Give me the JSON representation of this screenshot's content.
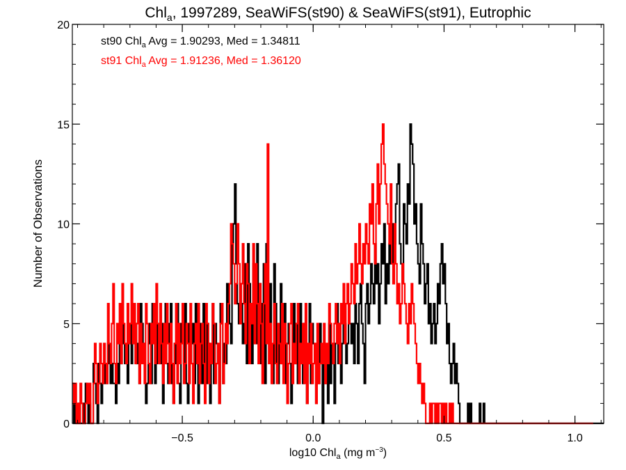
{
  "chart_data": {
    "type": "histogram-step",
    "title": {
      "prefix": "Chl",
      "sub": "a",
      "suffix": ", 1997289, SeaWiFS(st90) & SeaWiFS(st91), Eutrophic"
    },
    "xlabel": {
      "prefix": "log10 Chl",
      "sub": "a",
      "mid": " (mg m",
      "sup": "−3",
      "suffix": ")"
    },
    "ylabel": "Number of Observations",
    "xlim": [
      -0.92,
      1.11
    ],
    "ylim": [
      0,
      20
    ],
    "x_ticks": [
      -0.5,
      0.0,
      0.5,
      1.0
    ],
    "x_tick_labels": [
      "−0.5",
      "0.0",
      "0.5",
      "1.0"
    ],
    "y_ticks": [
      0,
      5,
      10,
      15,
      20
    ],
    "y_tick_labels": [
      "0",
      "5",
      "10",
      "15",
      "20"
    ],
    "bin_start": -0.92,
    "bin_width": 0.005,
    "legend": [
      {
        "prefix": "st90 Chl",
        "sub": "a",
        "suffix": " Avg = 1.90293, Med = 1.34811",
        "color": "#000000"
      },
      {
        "prefix": "st91 Chl",
        "sub": "a",
        "suffix": " Avg = 1.91236, Med = 1.36120",
        "color": "#ff0000"
      }
    ],
    "series": [
      {
        "color": "#000000",
        "values": [
          2,
          0,
          1,
          0,
          0,
          1,
          0,
          0,
          1,
          0,
          2,
          1,
          0,
          1,
          0,
          0,
          3,
          2,
          1,
          0,
          3,
          2,
          1,
          2,
          3,
          2,
          2,
          4,
          3,
          2,
          3,
          2,
          2,
          1,
          3,
          2,
          4,
          3,
          5,
          4,
          3,
          3,
          2,
          4,
          5,
          3,
          4,
          6,
          5,
          3,
          4,
          2,
          6,
          5,
          4,
          3,
          1,
          2,
          4,
          5,
          2,
          6,
          5,
          2,
          3,
          5,
          4,
          3,
          5,
          1,
          4,
          6,
          3,
          2,
          5,
          6,
          2,
          1,
          4,
          3,
          6,
          2,
          1,
          5,
          4,
          3,
          6,
          2,
          1,
          5,
          3,
          4,
          5,
          2,
          6,
          3,
          1,
          4,
          5,
          2,
          6,
          3,
          2,
          5,
          4,
          1,
          3,
          6,
          2,
          5,
          4,
          3,
          1,
          6,
          5,
          2,
          4,
          3,
          7,
          6,
          5,
          4,
          9,
          10,
          12,
          8,
          6,
          5,
          7,
          6,
          4,
          5,
          8,
          3,
          9,
          7,
          5,
          3,
          8,
          6,
          4,
          9,
          5,
          7,
          3,
          6,
          8,
          2,
          9,
          5,
          4,
          7,
          3,
          2,
          8,
          6,
          3,
          2,
          4,
          7,
          3,
          5,
          6,
          2,
          4,
          5,
          3,
          1,
          4,
          6,
          3,
          5,
          2,
          4,
          6,
          3,
          2,
          5,
          4,
          1,
          3,
          6,
          2,
          5,
          4,
          3,
          1,
          4,
          2,
          5,
          3,
          0,
          4,
          2,
          3,
          1,
          5,
          2,
          4,
          3,
          1,
          4,
          6,
          3,
          5,
          2,
          4,
          6,
          5,
          3,
          4,
          6,
          5,
          4,
          5,
          3,
          6,
          5,
          3,
          6,
          7,
          5,
          4,
          2,
          6,
          7,
          5,
          6,
          8,
          7,
          6,
          9,
          7,
          8,
          5,
          7,
          9,
          8,
          10,
          6,
          8,
          7,
          9,
          8,
          10,
          7,
          9,
          11,
          12,
          13,
          9,
          8,
          7,
          11,
          10,
          9,
          12,
          11,
          15,
          14,
          13,
          10,
          11,
          9,
          8,
          7,
          11,
          9,
          8,
          6,
          7,
          8,
          5,
          6,
          4,
          5,
          6,
          4,
          5,
          7,
          6,
          8,
          9,
          7,
          8,
          6,
          4,
          5,
          3,
          2,
          3,
          4,
          2,
          3,
          2,
          1,
          0,
          0,
          0,
          0,
          0,
          0,
          1,
          0,
          1,
          0,
          0,
          0,
          0,
          0,
          0,
          1,
          0,
          0,
          1,
          0,
          0,
          0,
          0,
          0,
          0,
          0,
          0,
          0,
          0,
          0,
          0,
          0,
          0,
          0,
          0,
          0,
          0,
          0,
          0,
          0,
          0,
          0,
          0,
          0,
          0,
          0,
          0,
          0,
          0,
          0,
          0,
          0,
          0,
          0,
          0,
          0,
          0,
          0,
          0,
          0,
          0,
          0,
          0,
          0,
          0,
          0,
          0,
          0,
          0,
          0,
          0,
          0,
          0,
          0,
          0,
          0,
          0,
          0,
          0,
          0,
          0,
          0,
          0,
          0,
          0,
          0,
          0,
          0,
          0,
          0,
          0,
          0,
          0,
          0,
          0,
          0,
          0,
          0,
          0,
          0,
          0,
          0,
          0,
          0,
          0,
          0,
          0,
          0,
          0,
          0,
          0,
          0,
          0,
          0,
          0,
          0,
          0,
          0,
          0,
          0,
          0
        ]
      },
      {
        "color": "#ff0000",
        "values": [
          2,
          1,
          2,
          0,
          1,
          0,
          2,
          1,
          0,
          0,
          1,
          2,
          1,
          2,
          0,
          0,
          2,
          4,
          3,
          1,
          2,
          4,
          3,
          2,
          4,
          3,
          2,
          6,
          4,
          3,
          5,
          7,
          3,
          2,
          5,
          4,
          6,
          3,
          7,
          5,
          4,
          3,
          6,
          4,
          5,
          7,
          4,
          6,
          3,
          5,
          6,
          2,
          5,
          3,
          4,
          2,
          6,
          5,
          3,
          2,
          5,
          4,
          6,
          3,
          7,
          5,
          3,
          6,
          4,
          2,
          5,
          3,
          6,
          4,
          2,
          5,
          3,
          1,
          4,
          6,
          2,
          5,
          3,
          4,
          6,
          2,
          3,
          5,
          4,
          2,
          6,
          3,
          1,
          4,
          5,
          3,
          6,
          2,
          4,
          5,
          3,
          1,
          6,
          5,
          2,
          4,
          3,
          6,
          5,
          2,
          3,
          4,
          1,
          5,
          6,
          2,
          3,
          5,
          4,
          6,
          7,
          10,
          9,
          8,
          6,
          7,
          10,
          8,
          5,
          7,
          9,
          6,
          4,
          8,
          7,
          3,
          6,
          5,
          9,
          4,
          8,
          6,
          3,
          7,
          5,
          2,
          6,
          8,
          4,
          14,
          3,
          5,
          2,
          4,
          6,
          3,
          2,
          5,
          4,
          3,
          6,
          2,
          5,
          4,
          1,
          3,
          5,
          6,
          2,
          4,
          3,
          5,
          6,
          2,
          4,
          3,
          5,
          2,
          6,
          1,
          4,
          3,
          5,
          2,
          3,
          4,
          1,
          5,
          2,
          3,
          4,
          3,
          5,
          2,
          4,
          3,
          6,
          5,
          4,
          3,
          5,
          6,
          4,
          5,
          3,
          6,
          5,
          7,
          4,
          6,
          7,
          5,
          6,
          8,
          7,
          6,
          9,
          7,
          8,
          10,
          8,
          7,
          9,
          8,
          10,
          9,
          8,
          11,
          10,
          12,
          9,
          8,
          11,
          13,
          10,
          12,
          14,
          15,
          13,
          12,
          11,
          10,
          9,
          12,
          8,
          7,
          10,
          8,
          6,
          7,
          5,
          6,
          8,
          7,
          6,
          5,
          4,
          6,
          5,
          7,
          6,
          5,
          4,
          3,
          2,
          3,
          2,
          1,
          2,
          1,
          0,
          0,
          0,
          1,
          0,
          1,
          1,
          0,
          1,
          0,
          1,
          1,
          0,
          1,
          0,
          1,
          0,
          0,
          1,
          0,
          1,
          0,
          0,
          0,
          0,
          0,
          0,
          0,
          0,
          0,
          0,
          0,
          0,
          0,
          0,
          0,
          0,
          0,
          0,
          0,
          0,
          0,
          0,
          0,
          0,
          0,
          0,
          0,
          0,
          0,
          0,
          0,
          0,
          0,
          0,
          0,
          0,
          0,
          0,
          0,
          0,
          0,
          0,
          0,
          0,
          0,
          0,
          0,
          0,
          0,
          0,
          0,
          0,
          0,
          0,
          0,
          0,
          0,
          0,
          0,
          0,
          0,
          0,
          0,
          0,
          0,
          0,
          0,
          0,
          0,
          0,
          0,
          0,
          0,
          0,
          0,
          0,
          0,
          0,
          0,
          0,
          0,
          0,
          0,
          0,
          0,
          0,
          0,
          0,
          0,
          0,
          0,
          0,
          0,
          0,
          0,
          0,
          0,
          0,
          0,
          0,
          0,
          0,
          0,
          0,
          0,
          0,
          0
        ]
      }
    ]
  }
}
